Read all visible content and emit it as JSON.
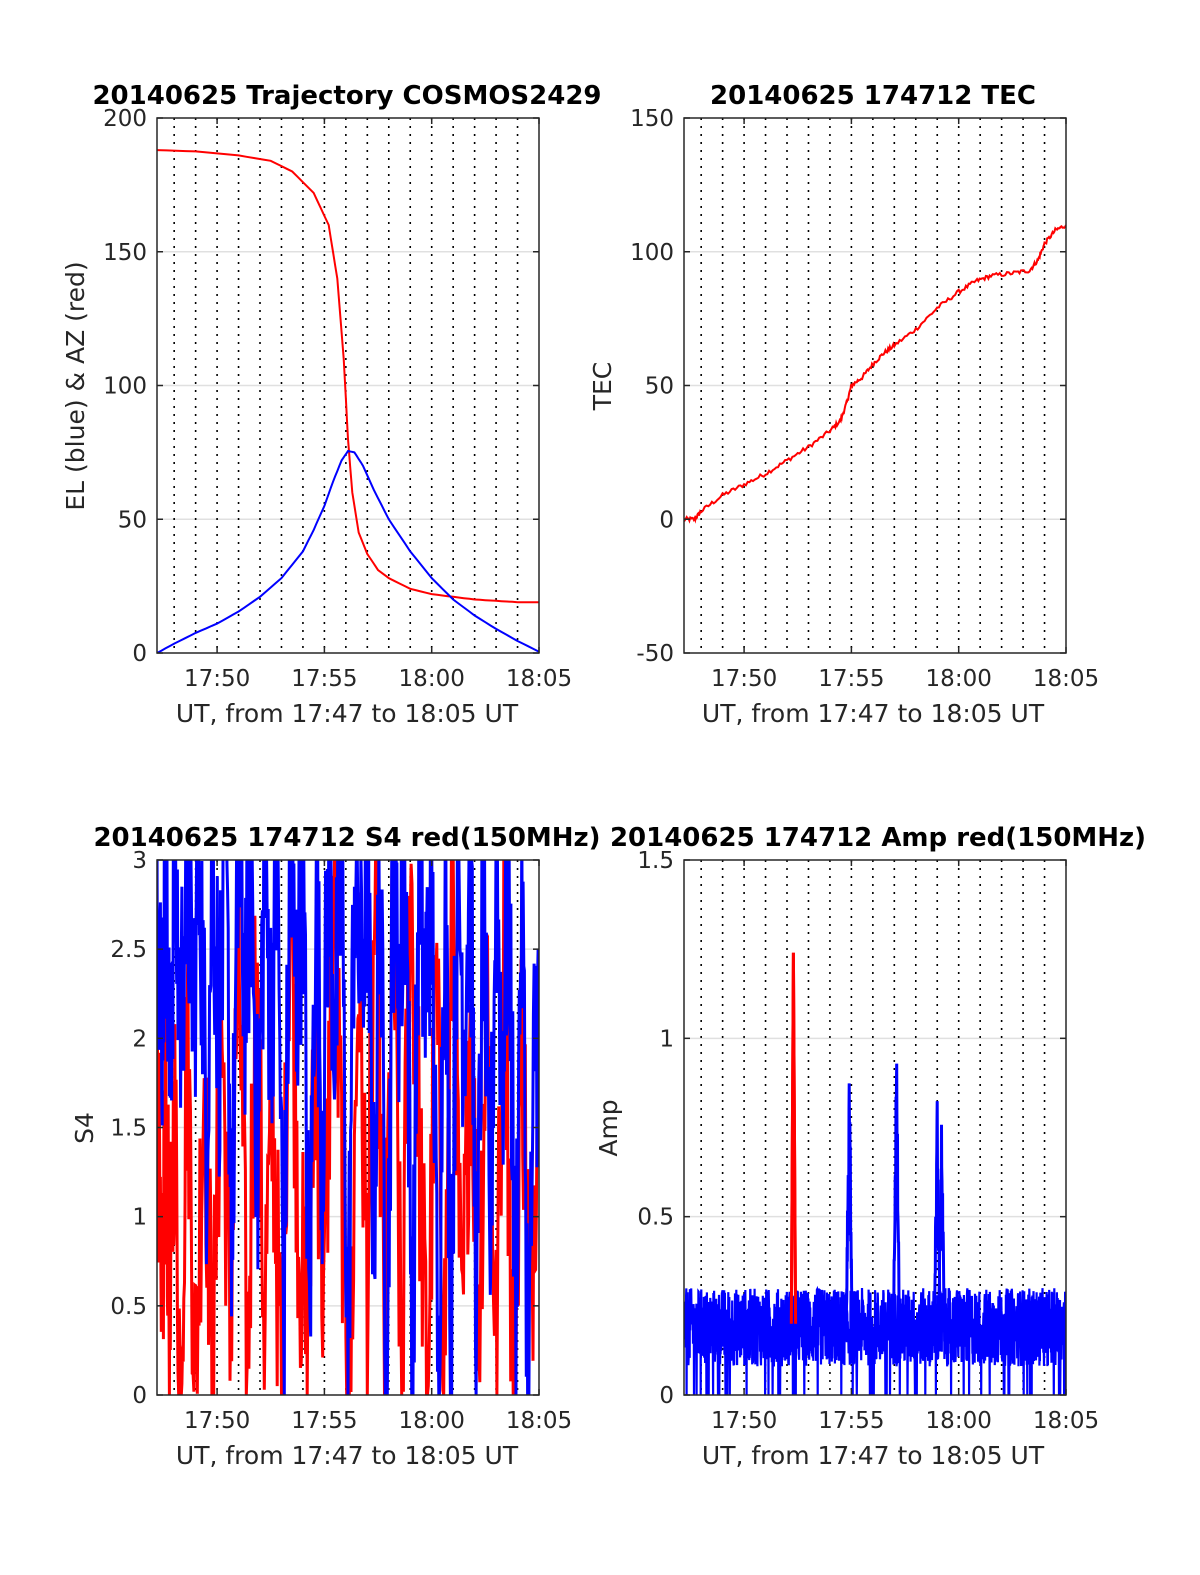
{
  "chart_data": [
    {
      "type": "line",
      "title": "20140625 Trajectory COSMOS2429",
      "xlabel": "UT, from 17:47 to 18:05 UT",
      "ylabel": "EL (blue) & AZ (red)",
      "xlim_minutes": [
        1067.2,
        1085
      ],
      "ylim": [
        0,
        200
      ],
      "xticks_minutes": [
        1070,
        1075,
        1080,
        1085
      ],
      "xtick_labels": [
        "17:50",
        "17:55",
        "18:00",
        "18:05"
      ],
      "yticks": [
        0,
        50,
        100,
        150,
        200
      ],
      "ytick_labels": [
        "0",
        "50",
        "100",
        "150",
        "200"
      ],
      "grid": "vertical dotted lines every 1 minute, horizontal gray lines at y ticks",
      "series": [
        {
          "color": "#ff0000",
          "x_minutes": [
            1067.2,
            1069,
            1071,
            1072.5,
            1073.5,
            1074.5,
            1075.2,
            1075.6,
            1075.9,
            1076.1,
            1076.3,
            1076.6,
            1077,
            1077.5,
            1078,
            1079,
            1080,
            1081,
            1082,
            1083,
            1084,
            1085
          ],
          "y": [
            188,
            187.5,
            186,
            184,
            180,
            172,
            160,
            140,
            110,
            80,
            60,
            45,
            37,
            31,
            28,
            24,
            22,
            21,
            20,
            19.5,
            19,
            19
          ]
        },
        {
          "color": "#0000ff",
          "x_minutes": [
            1067.2,
            1068,
            1069,
            1070,
            1071,
            1072,
            1073,
            1074,
            1074.5,
            1075,
            1075.4,
            1075.8,
            1076.1,
            1076.4,
            1076.8,
            1077.3,
            1078,
            1079,
            1080,
            1081,
            1082,
            1083,
            1084,
            1085
          ],
          "y": [
            0,
            3.5,
            7.5,
            11,
            15.5,
            21,
            28,
            38,
            46,
            55,
            64,
            72,
            75.5,
            75,
            70,
            61,
            50,
            38,
            28,
            20,
            14,
            9,
            4.5,
            0.5
          ]
        }
      ]
    },
    {
      "type": "line",
      "title": "20140625 174712 TEC",
      "xlabel": "UT, from 17:47 to 18:05 UT",
      "ylabel": "TEC",
      "xlim_minutes": [
        1067.2,
        1085
      ],
      "ylim": [
        -50,
        150
      ],
      "xticks_minutes": [
        1070,
        1075,
        1080,
        1085
      ],
      "xtick_labels": [
        "17:50",
        "17:55",
        "18:00",
        "18:05"
      ],
      "yticks": [
        -50,
        0,
        50,
        100,
        150
      ],
      "ytick_labels": [
        "-50",
        "0",
        "50",
        "100",
        "150"
      ],
      "grid": "vertical dotted lines every 1 minute, horizontal gray lines at y ticks",
      "series": [
        {
          "color": "#ff0000",
          "x_minutes": [
            1067.2,
            1067.7,
            1068,
            1069,
            1070,
            1071,
            1072,
            1073,
            1074,
            1074.5,
            1074.8,
            1075,
            1075.5,
            1076,
            1076.5,
            1077,
            1078,
            1079,
            1080,
            1080.8,
            1081.5,
            1082.5,
            1083.3,
            1083.7,
            1084,
            1084.5,
            1085
          ],
          "y": [
            0,
            0,
            3,
            9,
            13,
            17,
            22,
            27,
            33,
            37,
            44,
            50,
            53,
            58,
            62,
            65,
            71,
            79,
            85,
            89,
            91,
            92,
            93,
            97,
            103,
            108,
            110
          ]
        }
      ]
    },
    {
      "type": "line",
      "title": "20140625 174712 S4 red(150MHz)",
      "xlabel": "UT, from 17:47 to 18:05 UT",
      "ylabel": "S4",
      "xlim_minutes": [
        1067.2,
        1085
      ],
      "ylim": [
        0,
        3
      ],
      "xticks_minutes": [
        1070,
        1075,
        1080,
        1085
      ],
      "xtick_labels": [
        "17:50",
        "17:55",
        "18:00",
        "18:05"
      ],
      "yticks": [
        0,
        0.5,
        1,
        1.5,
        2,
        2.5,
        3
      ],
      "ytick_labels": [
        "0",
        "0.5",
        "1",
        "1.5",
        "2",
        "2.5",
        "3"
      ],
      "grid": "vertical dotted lines every 1 minute, horizontal gray lines at y ticks",
      "note": "dense noisy signal saturating between 0 and 3 in both red and blue",
      "series": [
        {
          "color": "#ff0000",
          "x_minutes": [
            1067.2,
            1067.4,
            1067.6,
            1067.8,
            1068,
            1068.3,
            1068.6,
            1069,
            1069.4,
            1069.8,
            1070.2,
            1070.6,
            1071,
            1071.4,
            1071.8,
            1072.2,
            1072.6,
            1073,
            1073.4,
            1073.8,
            1074.2,
            1074.6,
            1075,
            1075.4,
            1075.8,
            1076.2,
            1076.6,
            1077,
            1077.4,
            1077.8,
            1078.2,
            1078.6,
            1079,
            1079.4,
            1079.8,
            1080.2,
            1080.6,
            1081,
            1081.4,
            1081.8,
            1082.2,
            1082.6,
            1083,
            1083.4,
            1083.8,
            1084.2,
            1084.6,
            1085
          ],
          "y": [
            2.3,
            0,
            1.8,
            0.2,
            1.7,
            0,
            2.1,
            0.1,
            1.9,
            0,
            2.2,
            0.3,
            2.6,
            0,
            2.4,
            0.5,
            1.6,
            0,
            2.9,
            1.0,
            0.2,
            2.0,
            0.4,
            2.8,
            1.3,
            0,
            2.5,
            0.6,
            3.0,
            0.2,
            2.7,
            0,
            3.0,
            1.5,
            0,
            2.3,
            0.3,
            2.8,
            0.1,
            2.2,
            0.4,
            2.5,
            0.2,
            2.6,
            0,
            2.1,
            0.4,
            2.2
          ]
        },
        {
          "color": "#0000ff",
          "x_minutes": [
            1067.2,
            1067.4,
            1067.6,
            1067.8,
            1068,
            1068.3,
            1068.6,
            1068.9,
            1069.2,
            1069.5,
            1069.8,
            1070.1,
            1070.4,
            1070.7,
            1071,
            1071.3,
            1071.6,
            1071.9,
            1072.2,
            1072.5,
            1072.8,
            1073.1,
            1073.4,
            1073.7,
            1074,
            1074.3,
            1074.6,
            1074.9,
            1075.2,
            1075.5,
            1075.8,
            1076.1,
            1076.4,
            1076.7,
            1077,
            1077.3,
            1077.6,
            1077.9,
            1078.2,
            1078.5,
            1078.8,
            1079.1,
            1079.4,
            1079.7,
            1080,
            1080.3,
            1080.6,
            1080.9,
            1081.2,
            1081.5,
            1081.8,
            1082.1,
            1082.4,
            1082.7,
            1083,
            1083.3,
            1083.6,
            1083.9,
            1084.2,
            1084.5,
            1084.8,
            1085
          ],
          "y": [
            3.0,
            2.0,
            3.0,
            1.7,
            3.0,
            2.1,
            3.0,
            2.2,
            3.0,
            1.5,
            3.0,
            2.0,
            3.0,
            0.9,
            3.0,
            2.3,
            3.0,
            1.2,
            3.0,
            2.1,
            3.0,
            0.4,
            3.0,
            2.2,
            3.0,
            0.3,
            3.0,
            1.4,
            3.0,
            2.0,
            3.0,
            0.2,
            3.0,
            2.3,
            3.0,
            0.9,
            3.0,
            0,
            3.0,
            2.3,
            3.0,
            0.1,
            3.0,
            2.2,
            3.0,
            0,
            3.0,
            0.5,
            3.0,
            2.1,
            3.0,
            0.3,
            3.0,
            0.6,
            3.0,
            1.8,
            3.0,
            0.4,
            3.0,
            0,
            2.0,
            2.1
          ]
        }
      ]
    },
    {
      "type": "line",
      "title": "20140625 174712 Amp red(150MHz)",
      "xlabel": "UT, from 17:47 to 18:05 UT",
      "ylabel": "Amp",
      "xlim_minutes": [
        1067.2,
        1085
      ],
      "ylim": [
        0,
        1.5
      ],
      "xticks_minutes": [
        1070,
        1075,
        1080,
        1085
      ],
      "xtick_labels": [
        "17:50",
        "17:55",
        "18:00",
        "18:05"
      ],
      "yticks": [
        0,
        0.5,
        1,
        1.5
      ],
      "ytick_labels": [
        "0",
        "0.5",
        "1",
        "1.5"
      ],
      "grid": "vertical dotted lines every 1 minute, horizontal gray lines at y ticks",
      "note": "noisy baseline 0.1–0.3 with spikes near 17:52 (red, 1.24), 17:55 (0.98), 17:57 (1.05), 17:59 (0.84)",
      "series": [
        {
          "color": "#ff0000",
          "x_minutes": [
            1072.2,
            1072.3,
            1072.4
          ],
          "y": [
            0.2,
            1.24,
            0.2
          ]
        },
        {
          "color": "#0000ff",
          "spikes": [
            {
              "x_minutes": 1074.9,
              "y": 0.98
            },
            {
              "x_minutes": 1077.1,
              "y": 1.05
            },
            {
              "x_minutes": 1079.0,
              "y": 0.84
            },
            {
              "x_minutes": 1079.2,
              "y": 0.82
            }
          ],
          "baseline_range": [
            0.1,
            0.3
          ]
        }
      ]
    }
  ]
}
